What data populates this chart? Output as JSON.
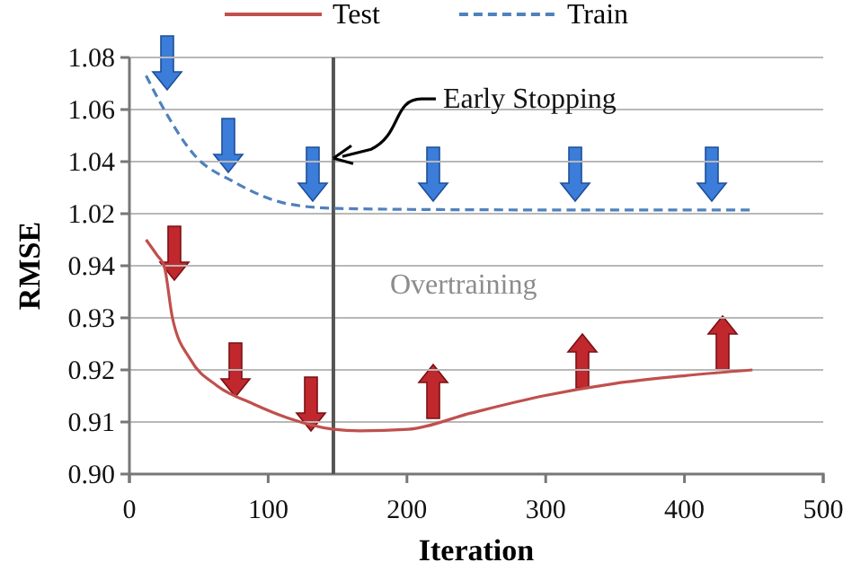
{
  "chart_data": [
    {
      "type": "line",
      "xlim": [
        0,
        500
      ],
      "ylim": [
        1.01,
        1.08
      ],
      "yticks": [
        1.02,
        1.04,
        1.06,
        1.08
      ],
      "grid": "y",
      "legend": "top",
      "tick_labels": "y",
      "series": [
        {
          "name": "Train",
          "color": "#4f81bd",
          "line_style": "dashed",
          "x": [
            12,
            25,
            46,
            76,
            115,
            150,
            250,
            350,
            447
          ],
          "values": [
            1.073,
            1.06,
            1.043,
            1.032,
            1.0237,
            1.022,
            1.0215,
            1.0214,
            1.0214
          ]
        }
      ],
      "ref_lines": [
        {
          "axis": "x",
          "value": 147,
          "color": "#555555"
        }
      ],
      "annotations": [
        {
          "text": "Early Stopping",
          "x": 147,
          "y": 1.042
        }
      ]
    },
    {
      "type": "line",
      "xlabel": "Iteration",
      "ylabel": "RMSE",
      "xlim": [
        0,
        500
      ],
      "xticks": [
        0,
        100,
        200,
        300,
        400,
        500
      ],
      "ylim": [
        0.9,
        0.945
      ],
      "yticks": [
        {
          "value": 0.9,
          "label": "0.90"
        },
        0.91,
        0.92,
        0.93,
        0.94
      ],
      "grid": "y",
      "legend": "top",
      "series": [
        {
          "name": "Test",
          "color": "#c0504d",
          "line_style": "solid",
          "x": [
            12,
            20,
            25,
            31,
            44,
            63,
            89,
            115,
            147,
            166,
            201,
            246,
            298,
            350,
            397,
            449
          ],
          "values": [
            0.945,
            0.942,
            0.94,
            0.93,
            0.922,
            0.917,
            0.9135,
            0.9107,
            0.9086,
            0.9083,
            0.9086,
            0.9117,
            0.915,
            0.9174,
            0.9188,
            0.92
          ]
        }
      ],
      "ref_lines": [
        {
          "axis": "x",
          "value": 147,
          "color": "#555555"
        }
      ],
      "annotations": [
        "Overtraining"
      ]
    }
  ]
}
